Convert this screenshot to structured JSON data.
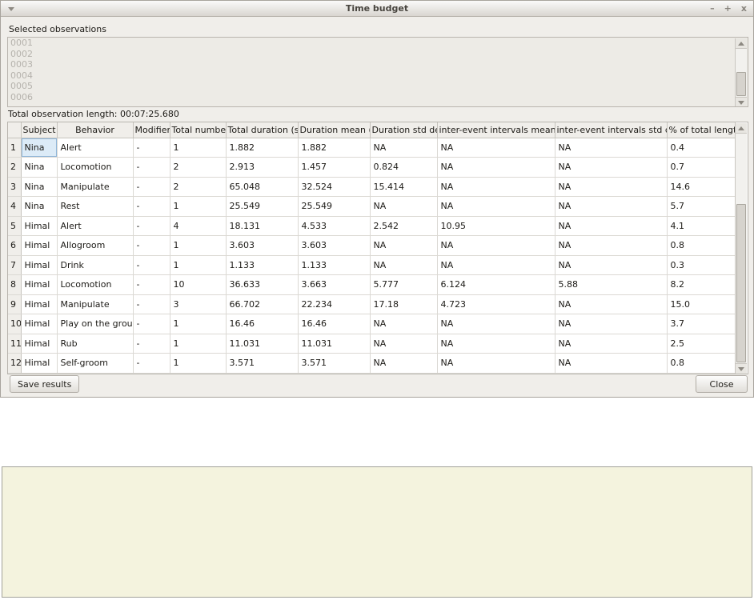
{
  "window": {
    "title": "Time budget",
    "controls": {
      "minimize": "–",
      "maximize": "+",
      "close": "x"
    }
  },
  "observations": {
    "label": "Selected observations",
    "items": [
      "0001",
      "0002",
      "0003",
      "0004",
      "0005",
      "0006"
    ]
  },
  "total_length_label": "Total observation length: 00:07:25.680",
  "table": {
    "headers": [
      "Subject",
      "Behavior",
      "Modifiers",
      "Total number",
      "Total duration (s)",
      "Duration mean (s)",
      "Duration std dev",
      "inter-event intervals mean (s)",
      "inter-event intervals std dev",
      "% of total length"
    ],
    "rows": [
      {
        "n": "1",
        "cells": [
          "Nina",
          "Alert",
          "-",
          "1",
          "1.882",
          "1.882",
          "NA",
          "NA",
          "NA",
          "0.4"
        ]
      },
      {
        "n": "2",
        "cells": [
          "Nina",
          "Locomotion",
          "-",
          "2",
          "2.913",
          "1.457",
          "0.824",
          "NA",
          "NA",
          "0.7"
        ]
      },
      {
        "n": "3",
        "cells": [
          "Nina",
          "Manipulate",
          "-",
          "2",
          "65.048",
          "32.524",
          "15.414",
          "NA",
          "NA",
          "14.6"
        ]
      },
      {
        "n": "4",
        "cells": [
          "Nina",
          "Rest",
          "-",
          "1",
          "25.549",
          "25.549",
          "NA",
          "NA",
          "NA",
          "5.7"
        ]
      },
      {
        "n": "5",
        "cells": [
          "Himal",
          "Alert",
          "-",
          "4",
          "18.131",
          "4.533",
          "2.542",
          "10.95",
          "NA",
          "4.1"
        ]
      },
      {
        "n": "6",
        "cells": [
          "Himal",
          "Allogroom",
          "-",
          "1",
          "3.603",
          "3.603",
          "NA",
          "NA",
          "NA",
          "0.8"
        ]
      },
      {
        "n": "7",
        "cells": [
          "Himal",
          "Drink",
          "-",
          "1",
          "1.133",
          "1.133",
          "NA",
          "NA",
          "NA",
          "0.3"
        ]
      },
      {
        "n": "8",
        "cells": [
          "Himal",
          "Locomotion",
          "-",
          "10",
          "36.633",
          "3.663",
          "5.777",
          "6.124",
          "5.88",
          "8.2"
        ]
      },
      {
        "n": "9",
        "cells": [
          "Himal",
          "Manipulate",
          "-",
          "3",
          "66.702",
          "22.234",
          "17.18",
          "4.723",
          "NA",
          "15.0"
        ]
      },
      {
        "n": "10",
        "cells": [
          "Himal",
          "Play on the ground",
          "-",
          "1",
          "16.46",
          "16.46",
          "NA",
          "NA",
          "NA",
          "3.7"
        ]
      },
      {
        "n": "11",
        "cells": [
          "Himal",
          "Rub",
          "-",
          "1",
          "11.031",
          "11.031",
          "NA",
          "NA",
          "NA",
          "2.5"
        ]
      },
      {
        "n": "12",
        "cells": [
          "Himal",
          "Self-groom",
          "-",
          "1",
          "3.571",
          "3.571",
          "NA",
          "NA",
          "NA",
          "0.8"
        ]
      }
    ],
    "selected_cell": {
      "row": 1,
      "column": "Subject"
    }
  },
  "buttons": {
    "save": "Save results",
    "close": "Close"
  },
  "colors": {
    "selection_bg": "#dcebf7",
    "selection_border": "#8fb6d9",
    "background_panel": "#f4f3de"
  }
}
